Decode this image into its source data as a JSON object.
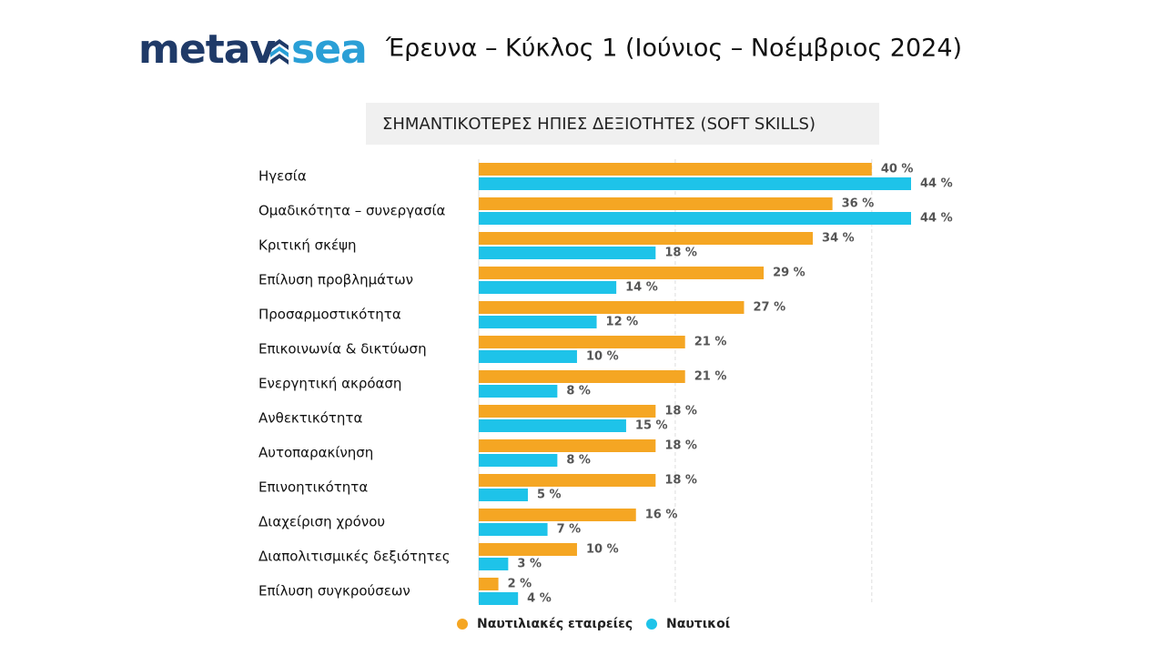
{
  "header": {
    "logo_left": "metav",
    "logo_right": "sea",
    "title": "Έρευνα – Κύκλος 1 (Ιούνιος – Νοέμβριος 2024)"
  },
  "chart_data": {
    "type": "hbar",
    "title": "ΣΗΜΑΝΤΙΚΟΤΕΡΕΣ ΗΠΙΕΣ ΔΕΞΙΟΤΗΤΕΣ (SOFT SKILLS)",
    "categories": [
      "Ηγεσία",
      "Ομαδικότητα – συνεργασία",
      "Κριτική σκέψη",
      "Επίλυση προβλημάτων",
      "Προσαρμοστικότητα",
      "Επικοινωνία & δικτύωση",
      "Ενεργητική ακρόαση",
      "Ανθεκτικότητα",
      "Αυτοπαρακίνηση",
      "Επινοητικότητα",
      "Διαχείριση χρόνου",
      "Διαπολιτισμικές δεξιότητες",
      "Επίλυση συγκρούσεων"
    ],
    "series": [
      {
        "name": "Ναυτιλιακές εταιρείες",
        "color": "#f5a623",
        "values": [
          40,
          36,
          34,
          29,
          27,
          21,
          21,
          18,
          18,
          18,
          16,
          10,
          2
        ],
        "value_labels": [
          "40 %",
          "36 %",
          "34 %",
          "29 %",
          "27 %",
          "21 %",
          "21 %",
          "18 %",
          "18 %",
          "18 %",
          "16 %",
          "10 %",
          "2 %"
        ]
      },
      {
        "name": "Ναυτικοί",
        "color": "#1ec3e9",
        "values": [
          44,
          44,
          18,
          14,
          12,
          10,
          8,
          15,
          8,
          5,
          7,
          3,
          4
        ],
        "value_labels": [
          "44 %",
          "44 %",
          "18 %",
          "14 %",
          "12 %",
          "10 %",
          "8 %",
          "15 %",
          "8 %",
          "5 %",
          "7 %",
          "3 %",
          "4 %"
        ]
      }
    ],
    "xlim": [
      0,
      44
    ],
    "gridlines": [
      20,
      40
    ],
    "legend": "bottom"
  }
}
